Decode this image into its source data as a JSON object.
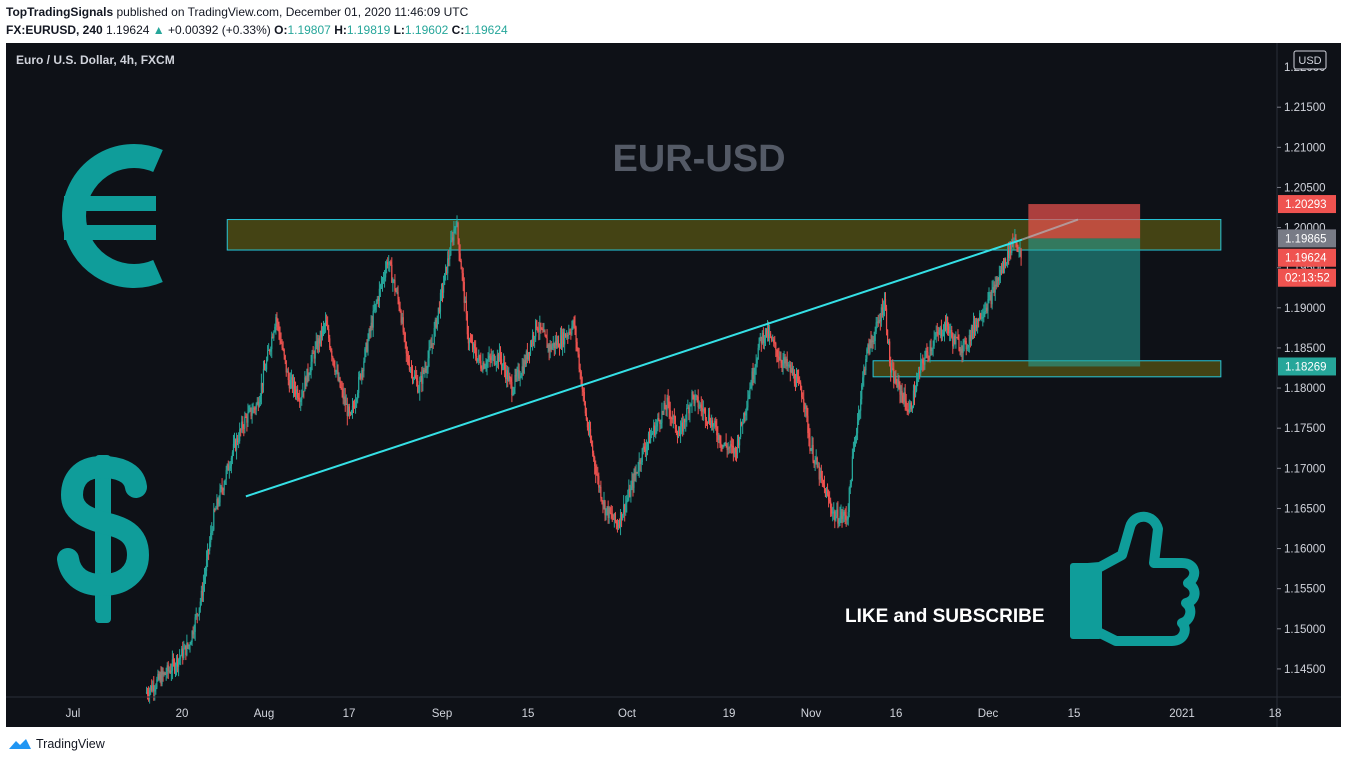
{
  "header": {
    "author": "TopTradingSignals",
    "published": "published on TradingView.com, December 01, 2020 11:46:09 UTC",
    "symbol": "FX:EURUSD, 240",
    "last": "1.19624",
    "change_arrow": "▲",
    "change": "+0.00392 (+0.33%)",
    "o_label": "O:",
    "o": "1.19807",
    "h_label": "H:",
    "h": "1.19819",
    "l_label": "L:",
    "l": "1.19602",
    "c_label": "C:",
    "c": "1.19624"
  },
  "footer": {
    "brand": "TradingView",
    "logo_icon": "tradingview-logo-icon"
  },
  "chart_data": {
    "type": "candlestick",
    "title": "EUR-USD",
    "subtitle": "Euro / U.S. Dollar, 4h, FXCM",
    "currency_badge": "USD",
    "annotation": "LIKE and SUBSCRIBE",
    "ylim": [
      1.1415,
      1.223
    ],
    "y_ticks": [
      "1.14500",
      "1.15000",
      "1.15500",
      "1.16000",
      "1.16500",
      "1.17000",
      "1.17500",
      "1.18000",
      "1.18500",
      "1.19000",
      "1.19500",
      "1.20000",
      "1.20500",
      "1.21000",
      "1.21500"
    ],
    "y_top_partial": "1.22000",
    "x_ticks": [
      "Jul",
      "20",
      "Aug",
      "17",
      "Sep",
      "15",
      "Oct",
      "19",
      "Nov",
      "16",
      "Dec",
      "15",
      "2021",
      "18"
    ],
    "price_labels": [
      {
        "value": "1.20293",
        "color": "#ef5350"
      },
      {
        "value": "1.19865",
        "color": "#787b86"
      },
      {
        "value": "1.19624",
        "color": "#ef5350"
      },
      {
        "value": "02:13:52",
        "color": "#ef5350"
      },
      {
        "value": "1.18269",
        "color": "#26a69a"
      }
    ],
    "path": [
      [
        "2020-07-13",
        1.142
      ],
      [
        "2020-07-17",
        1.145
      ],
      [
        "2020-07-20",
        1.148
      ],
      [
        "2020-07-22",
        1.154
      ],
      [
        "2020-07-24",
        1.164
      ],
      [
        "2020-07-27",
        1.172
      ],
      [
        "2020-07-29",
        1.176
      ],
      [
        "2020-07-31",
        1.178
      ],
      [
        "2020-08-02",
        1.185
      ],
      [
        "2020-08-03",
        1.189
      ],
      [
        "2020-08-05",
        1.181
      ],
      [
        "2020-08-07",
        1.179
      ],
      [
        "2020-08-09",
        1.184
      ],
      [
        "2020-08-11",
        1.188
      ],
      [
        "2020-08-13",
        1.181
      ],
      [
        "2020-08-15",
        1.176
      ],
      [
        "2020-08-17",
        1.183
      ],
      [
        "2020-08-19",
        1.19
      ],
      [
        "2020-08-20",
        1.193
      ],
      [
        "2020-08-21",
        1.196
      ],
      [
        "2020-08-23",
        1.19
      ],
      [
        "2020-08-24",
        1.184
      ],
      [
        "2020-08-26",
        1.18
      ],
      [
        "2020-08-28",
        1.185
      ],
      [
        "2020-08-30",
        1.193
      ],
      [
        "2020-09-01",
        1.201
      ],
      [
        "2020-09-02",
        1.194
      ],
      [
        "2020-09-03",
        1.186
      ],
      [
        "2020-09-05",
        1.183
      ],
      [
        "2020-09-08",
        1.184
      ],
      [
        "2020-09-10",
        1.18
      ],
      [
        "2020-09-12",
        1.183
      ],
      [
        "2020-09-14",
        1.188
      ],
      [
        "2020-09-16",
        1.185
      ],
      [
        "2020-09-18",
        1.186
      ],
      [
        "2020-09-20",
        1.188
      ],
      [
        "2020-09-22",
        1.176
      ],
      [
        "2020-09-24",
        1.168
      ],
      [
        "2020-09-25",
        1.165
      ],
      [
        "2020-09-27",
        1.163
      ],
      [
        "2020-09-29",
        1.167
      ],
      [
        "2020-10-01",
        1.172
      ],
      [
        "2020-10-03",
        1.175
      ],
      [
        "2020-10-05",
        1.178
      ],
      [
        "2020-10-07",
        1.174
      ],
      [
        "2020-10-09",
        1.179
      ],
      [
        "2020-10-12",
        1.176
      ],
      [
        "2020-10-14",
        1.173
      ],
      [
        "2020-10-16",
        1.172
      ],
      [
        "2020-10-18",
        1.179
      ],
      [
        "2020-10-20",
        1.186
      ],
      [
        "2020-10-21",
        1.187
      ],
      [
        "2020-10-23",
        1.184
      ],
      [
        "2020-10-25",
        1.182
      ],
      [
        "2020-10-27",
        1.179
      ],
      [
        "2020-10-28",
        1.173
      ],
      [
        "2020-10-30",
        1.168
      ],
      [
        "2020-11-01",
        1.164
      ],
      [
        "2020-11-03",
        1.164
      ],
      [
        "2020-11-04",
        1.172
      ],
      [
        "2020-11-06",
        1.184
      ],
      [
        "2020-11-08",
        1.188
      ],
      [
        "2020-11-09",
        1.191
      ],
      [
        "2020-11-10",
        1.182
      ],
      [
        "2020-11-12",
        1.179
      ],
      [
        "2020-11-13",
        1.177
      ],
      [
        "2020-11-15",
        1.183
      ],
      [
        "2020-11-17",
        1.186
      ],
      [
        "2020-11-19",
        1.188
      ],
      [
        "2020-11-20",
        1.186
      ],
      [
        "2020-11-22",
        1.185
      ],
      [
        "2020-11-23",
        1.187
      ],
      [
        "2020-11-25",
        1.19
      ],
      [
        "2020-11-26",
        1.191
      ],
      [
        "2020-11-28",
        1.195
      ],
      [
        "2020-11-30",
        1.199
      ],
      [
        "2020-12-01",
        1.1962
      ]
    ],
    "zones": [
      {
        "y1": 1.201,
        "y2": 1.1972,
        "x1": "2020-07-26",
        "x2": "2021-01-02"
      },
      {
        "y1": 1.1834,
        "y2": 1.1814,
        "x1": "2020-11-07",
        "x2": "2021-01-02"
      }
    ],
    "trendline": [
      [
        "2020-07-29",
        1.1665
      ],
      [
        "2020-12-01",
        1.1985
      ]
    ],
    "trendline_ext": [
      [
        "2020-12-01",
        1.1985
      ],
      [
        "2020-12-10",
        1.201
      ]
    ],
    "position": {
      "x1": "2020-12-02",
      "x2": "2020-12-20",
      "entry": 1.19865,
      "stop": 1.20293,
      "target": 1.18269
    },
    "colors": {
      "up": "#26a69a",
      "down": "#ef5350",
      "zone": "#4d4c14",
      "zone_border": "#26c6da",
      "trend": "#35e0e6",
      "watermark": "#545a66",
      "icon": "#0f9d9a"
    },
    "icons": [
      "euro-icon",
      "dollar-icon",
      "thumbs-up-icon"
    ]
  }
}
